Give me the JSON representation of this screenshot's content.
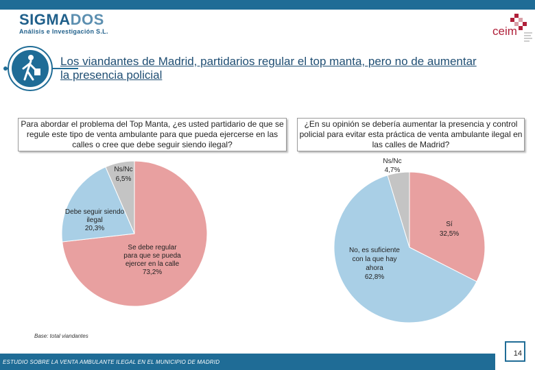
{
  "header": {
    "logo_name": "SIGMA",
    "logo_name_accent": "DOS",
    "logo_sub": "Análisis e Investigación S.L.",
    "partner_logo": "ceim",
    "title": "Los viandantes de Madrid, partidarios regular el top manta, pero no de aumentar la presencia policial"
  },
  "colors": {
    "bar": "#1f6c96",
    "red": "#e8a0a0",
    "blue": "#a9cfe6",
    "gray": "#c4c4c4"
  },
  "chart_data": [
    {
      "type": "pie",
      "title": "Para abordar el problema del Top Manta, ¿es usted partidario de que se regule este tipo de venta ambulante para que pueda ejercerse en las calles o cree que debe seguir siendo ilegal?",
      "slices": [
        {
          "label": "Se debe regular para que se pueda ejercer en la calle",
          "value_text": "73,2%",
          "value": 73.2,
          "color": "#e8a0a0"
        },
        {
          "label": "Debe seguir siendo ilegal",
          "value_text": "20,3%",
          "value": 20.3,
          "color": "#a9cfe6"
        },
        {
          "label": "Ns/Nc",
          "value_text": "6,5%",
          "value": 6.5,
          "color": "#c4c4c4"
        }
      ]
    },
    {
      "type": "pie",
      "title": "¿En su opinión se debería aumentar la presencia y control policial para evitar esta práctica de venta ambulante ilegal en las calles de Madrid?",
      "slices": [
        {
          "label": "Sí",
          "value_text": "32,5%",
          "value": 32.5,
          "color": "#e8a0a0"
        },
        {
          "label": "No, es suficiente con la que hay ahora",
          "value_text": "62,8%",
          "value": 62.8,
          "color": "#a9cfe6"
        },
        {
          "label": "Ns/Nc",
          "value_text": "4,7%",
          "value": 4.7,
          "color": "#c4c4c4"
        }
      ]
    }
  ],
  "footer": {
    "base": "Base: total viandantes",
    "study": "ESTUDIO SOBRE LA VENTA AMBULANTE ILEGAL EN EL MUNICIPIO DE MADRID",
    "page": "14"
  }
}
